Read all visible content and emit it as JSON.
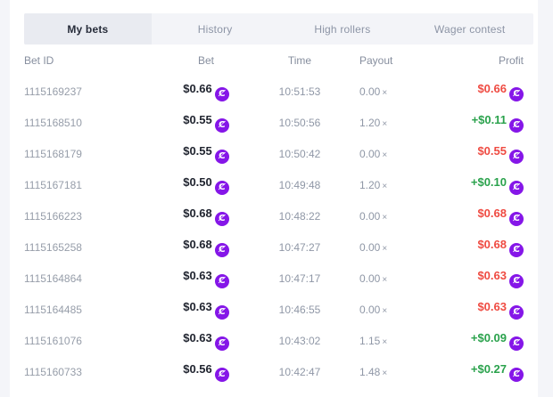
{
  "colors": {
    "accent_purple": "#8516e8",
    "loss_red": "#ef4b42",
    "win_green": "#2aa24c",
    "tab_bar_bg": "#f3f4f8",
    "active_tab_bg": "#e9ebf1",
    "page_margin_bg": "#f4f5f9",
    "card_bg": "#ffffff"
  },
  "icons": {
    "coin_icon_glyph": "Ȼ"
  },
  "tabs": {
    "items": [
      {
        "label": "My bets",
        "active": true
      },
      {
        "label": "History",
        "active": false
      },
      {
        "label": "High rollers",
        "active": false
      },
      {
        "label": "Wager contest",
        "active": false
      }
    ]
  },
  "table": {
    "headers": [
      "Bet ID",
      "Bet",
      "Time",
      "Payout",
      "Profit"
    ],
    "multiplier_symbol": "×",
    "rows": [
      {
        "bet_id": "1115169237",
        "bet": "$0.66",
        "time": "10:51:53",
        "payout": "0.00",
        "profit": "$0.66",
        "outcome": "loss"
      },
      {
        "bet_id": "1115168510",
        "bet": "$0.55",
        "time": "10:50:56",
        "payout": "1.20",
        "profit": "+$0.11",
        "outcome": "win"
      },
      {
        "bet_id": "1115168179",
        "bet": "$0.55",
        "time": "10:50:42",
        "payout": "0.00",
        "profit": "$0.55",
        "outcome": "loss"
      },
      {
        "bet_id": "1115167181",
        "bet": "$0.50",
        "time": "10:49:48",
        "payout": "1.20",
        "profit": "+$0.10",
        "outcome": "win"
      },
      {
        "bet_id": "1115166223",
        "bet": "$0.68",
        "time": "10:48:22",
        "payout": "0.00",
        "profit": "$0.68",
        "outcome": "loss"
      },
      {
        "bet_id": "1115165258",
        "bet": "$0.68",
        "time": "10:47:27",
        "payout": "0.00",
        "profit": "$0.68",
        "outcome": "loss"
      },
      {
        "bet_id": "1115164864",
        "bet": "$0.63",
        "time": "10:47:17",
        "payout": "0.00",
        "profit": "$0.63",
        "outcome": "loss"
      },
      {
        "bet_id": "1115164485",
        "bet": "$0.63",
        "time": "10:46:55",
        "payout": "0.00",
        "profit": "$0.63",
        "outcome": "loss"
      },
      {
        "bet_id": "1115161076",
        "bet": "$0.63",
        "time": "10:43:02",
        "payout": "1.15",
        "profit": "+$0.09",
        "outcome": "win"
      },
      {
        "bet_id": "1115160733",
        "bet": "$0.56",
        "time": "10:42:47",
        "payout": "1.48",
        "profit": "+$0.27",
        "outcome": "win"
      }
    ]
  }
}
